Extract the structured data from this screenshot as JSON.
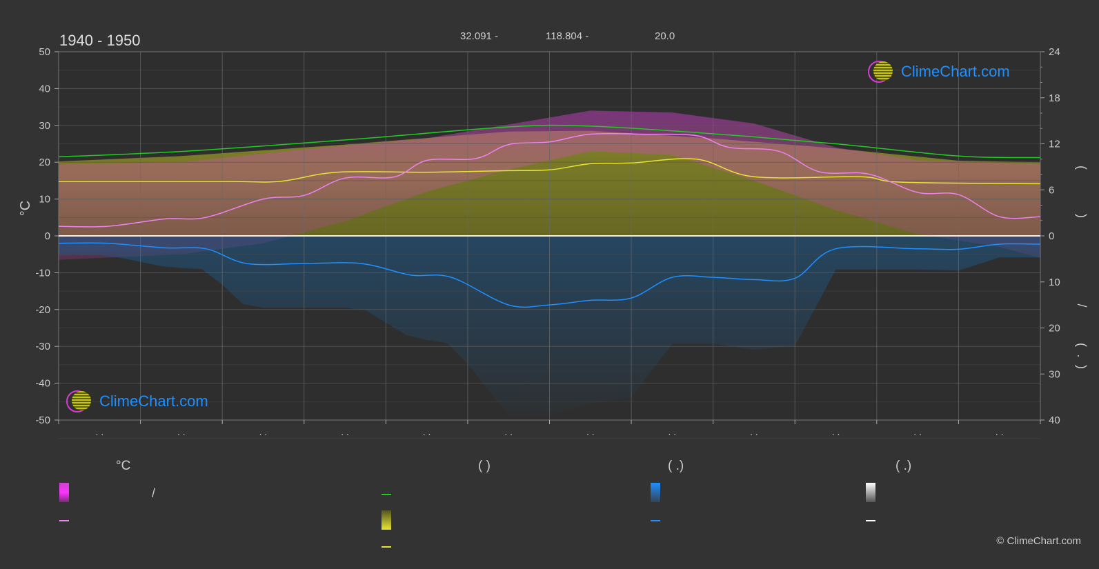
{
  "header": {
    "title": "1940 - 1950",
    "lat": "32.091 -",
    "lon": "118.804 -",
    "elev": "20.0"
  },
  "logo_text": "ClimeChart.com",
  "copyright": "© ClimeChart.com",
  "legend": {
    "col1_head": "°C",
    "col1_row1_sep": "/",
    "col2_head": "( )",
    "col3_head": "( .)",
    "col4_head": "( .)"
  },
  "colors": {
    "background": "#333333",
    "daylight": "#22cc22",
    "sunshine": "#e6e632",
    "temp_mean": "#ee82ee",
    "precip": "#1e90ff",
    "temp_range": "#cc44cc",
    "snow": "#ffffff"
  },
  "chart_data": {
    "type": "area",
    "left_axis": {
      "label": "°C",
      "ticks": [
        50,
        40,
        30,
        20,
        10,
        0,
        -10,
        -20,
        -30,
        -40,
        -50
      ],
      "range": [
        -50,
        50
      ]
    },
    "right_axis_top": {
      "ticks": [
        24,
        18,
        12,
        6,
        0
      ],
      "range": [
        0,
        24
      ]
    },
    "right_axis_bottom": {
      "ticks": [
        0,
        10,
        20,
        30,
        40
      ],
      "range": [
        0,
        40
      ]
    },
    "x_tick_labels": [
      ". .",
      ". .",
      ". .",
      ". .",
      ". .",
      ". .",
      ". .",
      ". .",
      ". .",
      ". .",
      ". .",
      ". ."
    ],
    "months": 12,
    "series": [
      {
        "key": "daylight",
        "axis": "hours",
        "points": [
          [
            0,
            10.3
          ],
          [
            1.5,
            11.0
          ],
          [
            3.5,
            12.5
          ],
          [
            5.5,
            14.2
          ],
          [
            6.5,
            14.3
          ],
          [
            8,
            13.3
          ],
          [
            9.5,
            12.0
          ],
          [
            11,
            10.4
          ],
          [
            12,
            10.2
          ]
        ]
      },
      {
        "key": "sunshine",
        "axis": "hours",
        "points": [
          [
            0,
            7.1
          ],
          [
            2,
            7.1
          ],
          [
            2.7,
            7.1
          ],
          [
            3.4,
            8.3
          ],
          [
            4.5,
            8.3
          ],
          [
            5.5,
            8.5
          ],
          [
            6,
            8.6
          ],
          [
            6.5,
            9.4
          ],
          [
            7,
            9.5
          ],
          [
            7.8,
            10.0
          ],
          [
            8.5,
            7.7
          ],
          [
            9.8,
            7.7
          ],
          [
            10.3,
            7.0
          ],
          [
            12,
            6.8
          ]
        ]
      },
      {
        "key": "temp_mean",
        "axis": "celsius",
        "points": [
          [
            0,
            2.6
          ],
          [
            0.6,
            2.6
          ],
          [
            1.3,
            4.6
          ],
          [
            1.8,
            5.0
          ],
          [
            2.5,
            10.0
          ],
          [
            3.0,
            11.0
          ],
          [
            3.5,
            15.7
          ],
          [
            4.1,
            16.0
          ],
          [
            4.5,
            20.5
          ],
          [
            5.1,
            21.0
          ],
          [
            5.5,
            24.8
          ],
          [
            6.0,
            25.5
          ],
          [
            6.5,
            27.6
          ],
          [
            7.2,
            27.6
          ],
          [
            7.8,
            27.2
          ],
          [
            8.2,
            24.0
          ],
          [
            8.8,
            23.0
          ],
          [
            9.3,
            17.4
          ],
          [
            9.9,
            16.8
          ],
          [
            10.5,
            11.8
          ],
          [
            11.0,
            11.2
          ],
          [
            11.5,
            5.2
          ],
          [
            12,
            5.2
          ]
        ]
      },
      {
        "key": "precip",
        "axis": "mm",
        "points": [
          [
            0,
            1.6
          ],
          [
            0.6,
            1.6
          ],
          [
            1.3,
            2.6
          ],
          [
            1.8,
            2.8
          ],
          [
            2.3,
            6.0
          ],
          [
            3.0,
            6.0
          ],
          [
            3.7,
            6.0
          ],
          [
            4.3,
            8.5
          ],
          [
            4.8,
            9.0
          ],
          [
            5.5,
            15.0
          ],
          [
            6.0,
            15.0
          ],
          [
            6.5,
            14.0
          ],
          [
            7.0,
            13.5
          ],
          [
            7.5,
            9.0
          ],
          [
            8.0,
            9.0
          ],
          [
            8.5,
            9.5
          ],
          [
            9.0,
            9.2
          ],
          [
            9.5,
            2.8
          ],
          [
            10.5,
            2.8
          ],
          [
            11.0,
            2.9
          ],
          [
            11.5,
            1.8
          ],
          [
            12,
            1.8
          ]
        ]
      },
      {
        "key": "temp_max_band",
        "axis": "celsius",
        "points": [
          [
            0,
            19.5
          ],
          [
            1.5,
            20.0
          ],
          [
            3.0,
            23.5
          ],
          [
            4.5,
            26.5
          ],
          [
            6.5,
            34.0
          ],
          [
            7.5,
            33.5
          ],
          [
            8.5,
            30.5
          ],
          [
            9.5,
            24.0
          ],
          [
            10.5,
            20.5
          ],
          [
            12,
            19.5
          ]
        ]
      },
      {
        "key": "temp_min_band",
        "axis": "celsius",
        "points": [
          [
            0,
            -6.5
          ],
          [
            1.5,
            -5.0
          ],
          [
            2.5,
            -2.0
          ],
          [
            3.5,
            4.0
          ],
          [
            4.5,
            12.0
          ],
          [
            5.5,
            18.0
          ],
          [
            6.5,
            23.0
          ],
          [
            7.5,
            22.0
          ],
          [
            8.5,
            15.0
          ],
          [
            9.5,
            7.0
          ],
          [
            10.5,
            0.5
          ],
          [
            11.5,
            -3.0
          ],
          [
            12,
            -6.0
          ]
        ]
      }
    ]
  }
}
